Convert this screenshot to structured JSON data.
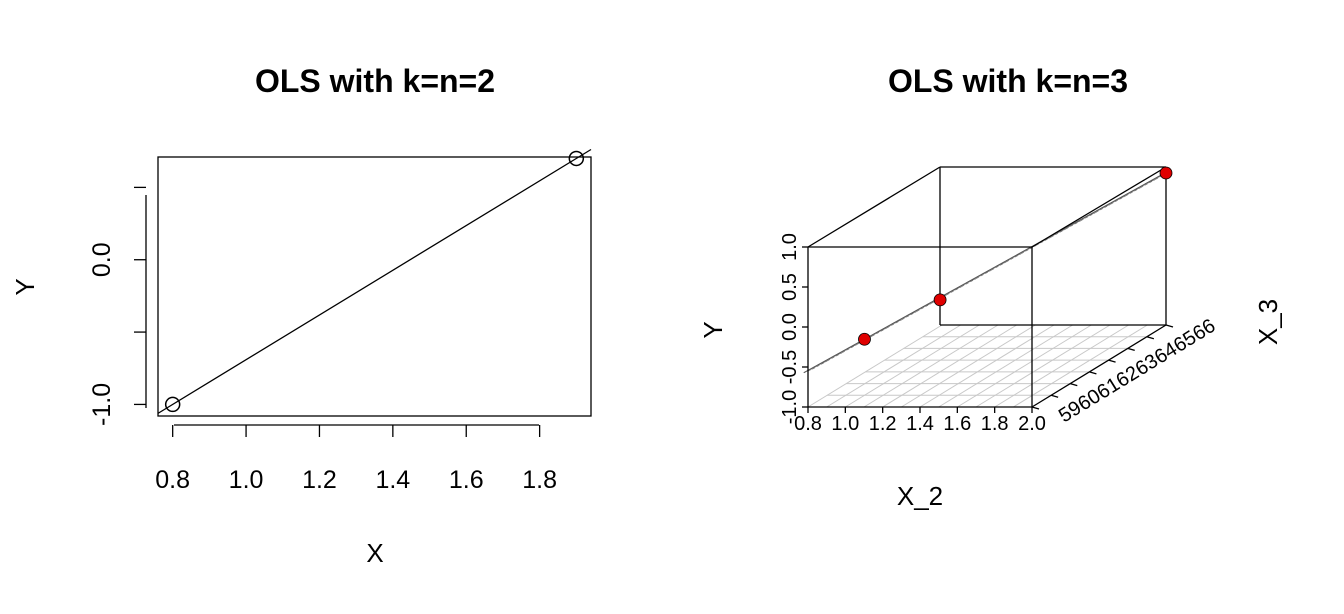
{
  "chart_data": [
    {
      "type": "scatter",
      "title": "OLS with k=n=2",
      "xlabel": "X",
      "ylabel": "Y",
      "xlim": [
        0.76,
        1.94
      ],
      "ylim": [
        -1.08,
        0.71
      ],
      "xticks": [
        0.8,
        1.0,
        1.2,
        1.4,
        1.6,
        1.8
      ],
      "xtick_labels": [
        "0.8",
        "1.0",
        "1.2",
        "1.4",
        "1.6",
        "1.8"
      ],
      "yticks": [
        -1.0,
        -0.5,
        0.0,
        0.5
      ],
      "ytick_labels": [
        "-1.0",
        "",
        "0.0",
        ""
      ],
      "points": [
        {
          "x": 0.8,
          "y": -1.0
        },
        {
          "x": 1.9,
          "y": 0.7
        }
      ],
      "fit_line": {
        "intercept": -2.2364,
        "slope": 1.5455
      },
      "marker": "open-circle",
      "colors": {
        "points": "#000000",
        "line": "#000000"
      }
    },
    {
      "type": "scatter3d",
      "title": "OLS with k=n=3",
      "xlabel": "X_2",
      "ylabel": "X_3",
      "zlabel": "Y",
      "xticks": [
        0.8,
        1.0,
        1.2,
        1.4,
        1.6,
        1.8,
        2.0
      ],
      "xtick_labels": [
        "0.8",
        "1.0",
        "1.2",
        "1.4",
        "1.6",
        "1.8",
        "2.0"
      ],
      "yticks": [
        59,
        60,
        61,
        62,
        63,
        64,
        65,
        66
      ],
      "ytick_labels": [
        "59",
        "60",
        "61",
        "62",
        "63",
        "64",
        "65",
        "66"
      ],
      "zticks": [
        -1.0,
        -0.5,
        0.0,
        0.5,
        1.0
      ],
      "ztick_labels": [
        "-1.0",
        "-0.5",
        "0.0",
        "0.5",
        "1.0"
      ],
      "points": [
        {
          "x": 1.0,
          "y": 60,
          "z": -0.3
        },
        {
          "x": 1.2,
          "y": 62,
          "z": -0.1
        },
        {
          "x": 2.0,
          "y": 66,
          "z": 0.9
        }
      ],
      "plane_present": true,
      "grid": true,
      "colors": {
        "points": "#e00000",
        "plane": "#9a9a9a",
        "grid": "#c8c8c8"
      }
    }
  ]
}
